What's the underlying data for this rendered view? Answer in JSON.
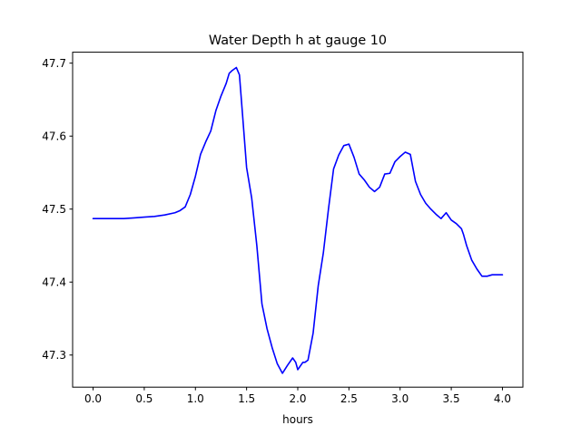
{
  "chart_data": {
    "type": "line",
    "title": "Water Depth h at gauge 10",
    "xlabel": "hours",
    "ylabel": "",
    "xlim": [
      -0.2,
      4.2
    ],
    "ylim": [
      47.256,
      47.715
    ],
    "xticks": [
      0.0,
      0.5,
      1.0,
      1.5,
      2.0,
      2.5,
      3.0,
      3.5,
      4.0
    ],
    "xtick_labels": [
      "0.0",
      "0.5",
      "1.0",
      "1.5",
      "2.0",
      "2.5",
      "3.0",
      "3.5",
      "4.0"
    ],
    "yticks": [
      47.3,
      47.4,
      47.5,
      47.6,
      47.7
    ],
    "ytick_labels": [
      "47.3",
      "47.4",
      "47.5",
      "47.6",
      "47.7"
    ],
    "grid": false,
    "legend": "none",
    "series": [
      {
        "color": "#0000ff",
        "x": [
          0.0,
          0.1,
          0.2,
          0.3,
          0.4,
          0.5,
          0.6,
          0.7,
          0.8,
          0.85,
          0.9,
          0.95,
          1.0,
          1.05,
          1.1,
          1.15,
          1.2,
          1.25,
          1.3,
          1.33,
          1.36,
          1.4,
          1.43,
          1.46,
          1.5,
          1.55,
          1.6,
          1.65,
          1.7,
          1.75,
          1.8,
          1.85,
          1.9,
          1.95,
          1.98,
          2.0,
          2.03,
          2.05,
          2.07,
          2.1,
          2.15,
          2.2,
          2.25,
          2.3,
          2.35,
          2.4,
          2.45,
          2.5,
          2.55,
          2.6,
          2.65,
          2.7,
          2.75,
          2.8,
          2.85,
          2.9,
          2.95,
          3.0,
          3.05,
          3.1,
          3.15,
          3.2,
          3.25,
          3.3,
          3.35,
          3.4,
          3.45,
          3.5,
          3.55,
          3.6,
          3.62,
          3.65,
          3.7,
          3.75,
          3.8,
          3.85,
          3.9,
          3.95,
          4.0
        ],
        "y": [
          47.487,
          47.487,
          47.487,
          47.487,
          47.488,
          47.489,
          47.49,
          47.492,
          47.495,
          47.498,
          47.503,
          47.52,
          47.545,
          47.575,
          47.592,
          47.607,
          47.635,
          47.655,
          47.672,
          47.686,
          47.69,
          47.694,
          47.684,
          47.63,
          47.557,
          47.515,
          47.45,
          47.37,
          47.336,
          47.31,
          47.288,
          47.275,
          47.286,
          47.296,
          47.29,
          47.28,
          47.286,
          47.29,
          47.29,
          47.293,
          47.33,
          47.395,
          47.44,
          47.5,
          47.555,
          47.574,
          47.587,
          47.589,
          47.571,
          47.548,
          47.54,
          47.53,
          47.524,
          47.53,
          47.548,
          47.549,
          47.565,
          47.572,
          47.578,
          47.575,
          47.538,
          47.52,
          47.508,
          47.5,
          47.493,
          47.487,
          47.495,
          47.485,
          47.48,
          47.473,
          47.465,
          47.45,
          47.43,
          47.418,
          47.408,
          47.408,
          47.41,
          47.41,
          47.41
        ]
      }
    ]
  }
}
